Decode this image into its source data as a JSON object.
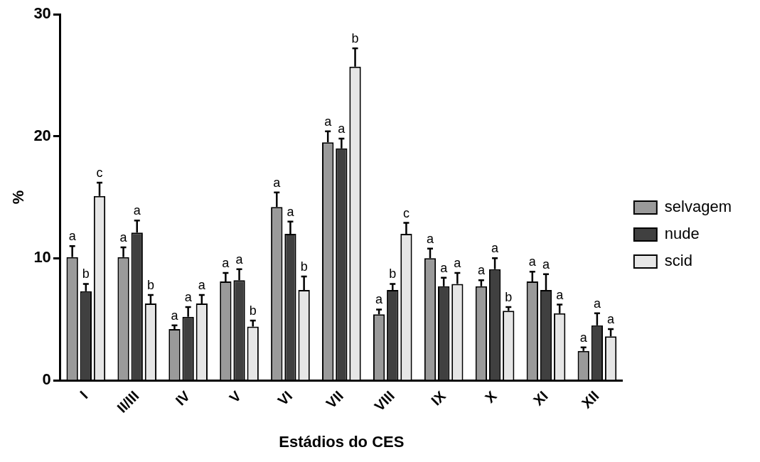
{
  "chart_data": {
    "type": "bar",
    "xlabel": "Estádios do CES",
    "ylabel": "%",
    "categories": [
      "I",
      "II/III",
      "IV",
      "V",
      "VI",
      "VII",
      "VIII",
      "IX",
      "X",
      "XI",
      "XII"
    ],
    "series": [
      {
        "name": "selvagem",
        "color": "#9a9a9a",
        "values": [
          10.1,
          10.1,
          4.2,
          8.1,
          14.2,
          19.5,
          5.4,
          10.0,
          7.7,
          8.1,
          2.4
        ],
        "errors": [
          0.9,
          0.8,
          0.3,
          0.7,
          1.2,
          0.9,
          0.4,
          0.8,
          0.5,
          0.8,
          0.3
        ],
        "value_labels": [
          "a",
          "a",
          "a",
          "a",
          "a",
          "a",
          "a",
          "a",
          "a",
          "a",
          "a"
        ]
      },
      {
        "name": "nude",
        "color": "#404040",
        "values": [
          7.3,
          12.1,
          5.2,
          8.2,
          12.0,
          19.0,
          7.4,
          7.7,
          9.1,
          7.4,
          4.5
        ],
        "errors": [
          0.6,
          1.0,
          0.8,
          0.9,
          1.0,
          0.8,
          0.5,
          0.7,
          0.9,
          1.3,
          1.0
        ],
        "value_labels": [
          "b",
          "a",
          "a",
          "a",
          "a",
          "a",
          "b",
          "a",
          "a",
          "a",
          "a"
        ]
      },
      {
        "name": "scid",
        "color": "#e6e6e6",
        "values": [
          15.1,
          6.3,
          6.3,
          4.4,
          7.4,
          25.7,
          12.0,
          7.9,
          5.7,
          5.5,
          3.6
        ],
        "errors": [
          1.1,
          0.7,
          0.7,
          0.5,
          1.1,
          1.5,
          0.9,
          0.9,
          0.3,
          0.7,
          0.6
        ],
        "value_labels": [
          "c",
          "b",
          "a",
          "b",
          "b",
          "b",
          "c",
          "a",
          "b",
          "a",
          "a"
        ]
      }
    ],
    "ylim": [
      0,
      30
    ],
    "yticks": [
      0,
      10,
      20,
      30
    ],
    "grid": false,
    "legend": "right"
  }
}
